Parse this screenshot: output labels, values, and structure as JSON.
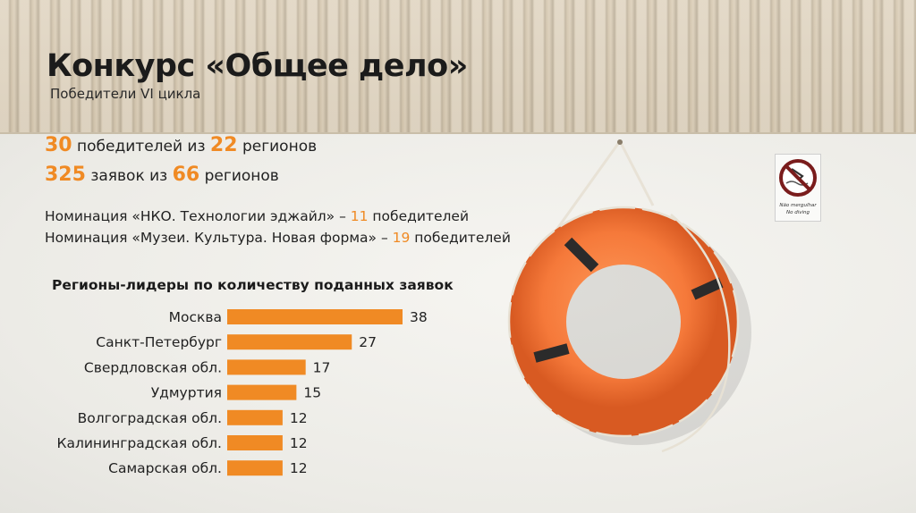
{
  "title": "Конкурс «Общее дело»",
  "subtitle": "Победители VI цикла",
  "stats": [
    {
      "value": "30",
      "text1": " победителей из ",
      "value2": "22",
      "text2": " регионов"
    },
    {
      "value": "325",
      "text1": " заявок из ",
      "value2": "66",
      "text2": " регионов"
    }
  ],
  "nominations": [
    {
      "text": "Номинация «НКО. Технологии эджайл» – ",
      "count": "11",
      "suffix": " победителей"
    },
    {
      "text": "Номинация «Музеи. Культура. Новая форма» – ",
      "count": "19",
      "suffix": " победителей"
    }
  ],
  "sign": {
    "line1": "Não mergulhar",
    "line2": "No diving"
  },
  "colors": {
    "accent": "#f08a24",
    "bar": "#f08a24"
  },
  "chart_data": {
    "type": "bar",
    "orientation": "horizontal",
    "title": "Регионы-лидеры по количеству поданных заявок",
    "categories": [
      "Москва",
      "Санкт-Петербург",
      "Свердловская обл.",
      "Удмуртия",
      "Волгоградская обл.",
      "Калининградская обл.",
      "Самарская обл."
    ],
    "values": [
      38,
      27,
      17,
      15,
      12,
      12,
      12
    ],
    "data_labels": true,
    "grid": false
  }
}
